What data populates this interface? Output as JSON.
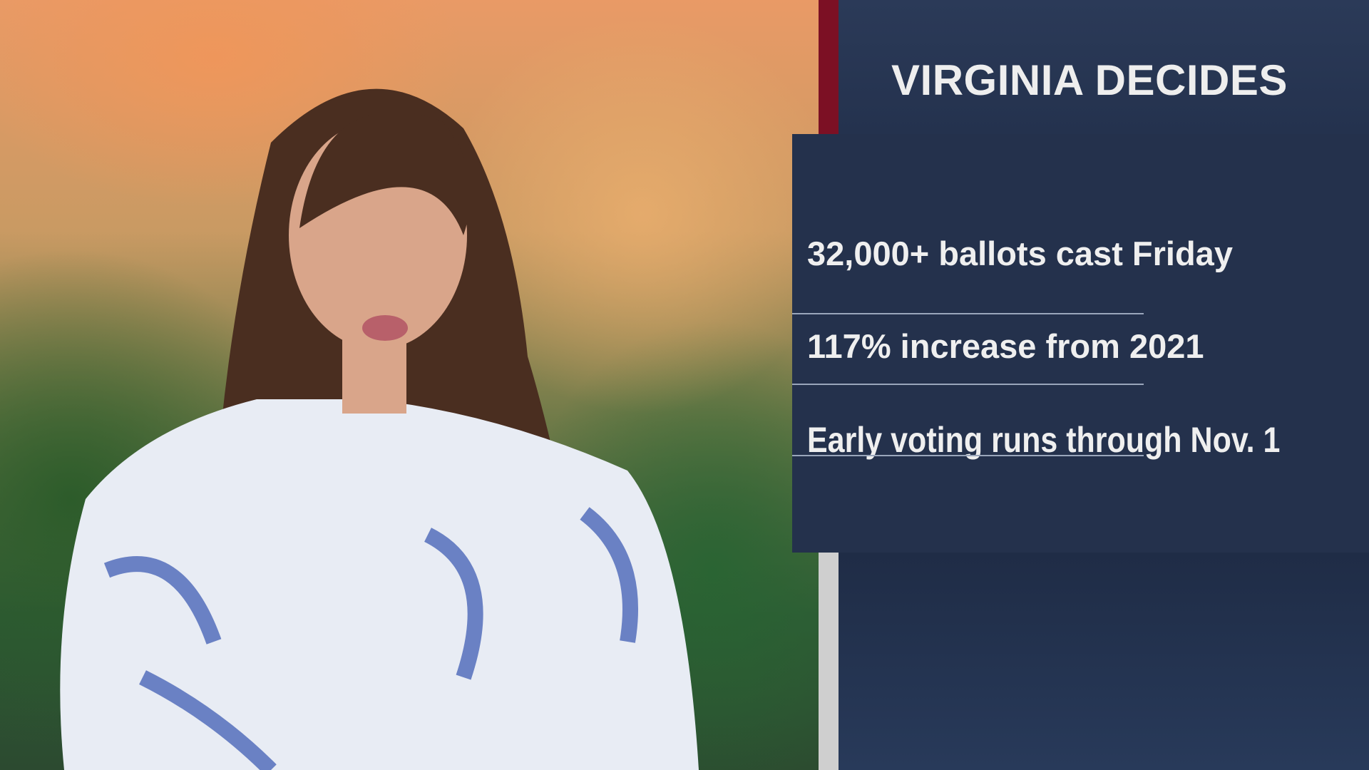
{
  "graphic": {
    "title": "VIRGINIA DECIDES",
    "items": [
      "32,000+ ballots cast Friday",
      "117% increase from 2021",
      "Early voting runs through Nov. 1"
    ]
  },
  "colors": {
    "navy": "#24314c",
    "accent_red": "#7c1024",
    "text": "#efefef"
  }
}
